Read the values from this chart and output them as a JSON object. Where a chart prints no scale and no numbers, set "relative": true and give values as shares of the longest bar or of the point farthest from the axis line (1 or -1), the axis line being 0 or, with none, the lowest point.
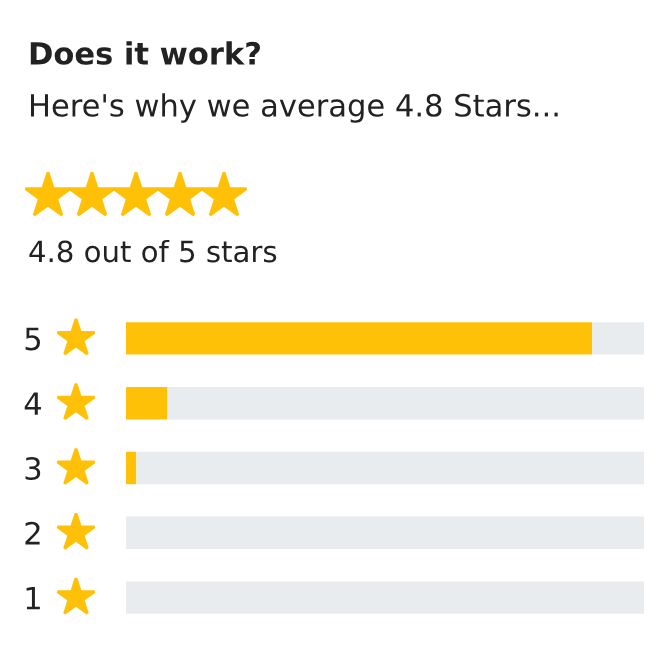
{
  "chart_data": {
    "type": "bar",
    "orientation": "horizontal",
    "relative": true,
    "title": "Does it work?",
    "subtitle": "Here's why we average 4.8 Stars...",
    "annotations": [
      "4.8 out of 5 stars"
    ],
    "categories": [
      "5",
      "4",
      "3",
      "2",
      "1"
    ],
    "stacked": true,
    "series": [
      {
        "color": "#ffc107",
        "values": [
          0.9,
          0.08,
          0.02,
          0,
          0
        ]
      },
      {
        "color": "#e9ecef",
        "values": [
          0.1,
          0.92,
          0.98,
          1,
          1
        ]
      }
    ],
    "tick_labels": "y",
    "grid": false,
    "legend": false
  }
}
